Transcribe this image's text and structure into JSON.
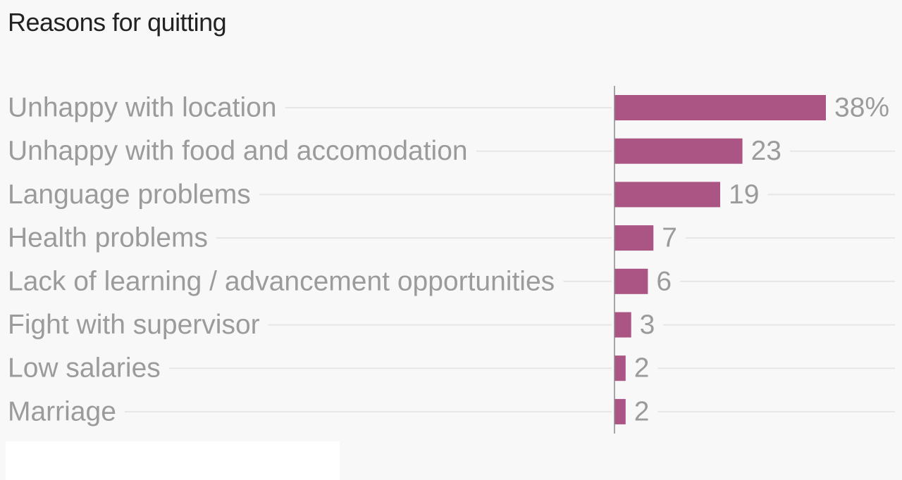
{
  "chart_data": {
    "type": "bar",
    "orientation": "horizontal",
    "title": "Reasons for quitting",
    "categories": [
      "Unhappy with location",
      "Unhappy with food and accomodation",
      "Language problems",
      "Health problems",
      "Lack of learning / advancement opportunities",
      "Fight with supervisor",
      "Low salaries",
      "Marriage"
    ],
    "values": [
      38,
      23,
      19,
      7,
      6,
      3,
      2,
      2
    ],
    "value_labels": [
      "38%",
      "23",
      "19",
      "7",
      "6",
      "3",
      "2",
      "2"
    ],
    "xlim": [
      0,
      38
    ],
    "grid": true,
    "legend": "none"
  },
  "colors": {
    "bar": "#ab5585",
    "label": "#9b9b9b",
    "title": "#222222",
    "background": "#f8f8f8",
    "gridline": "#e6e6e6",
    "axis": "#888888"
  }
}
